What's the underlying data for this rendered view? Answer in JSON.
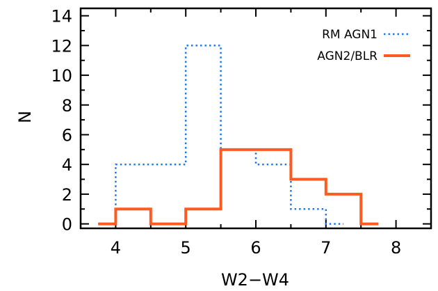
{
  "chart_data": {
    "type": "step-histogram",
    "xlabel": "W2−W4",
    "ylabel": "N",
    "xlim": [
      3.5,
      8.5
    ],
    "ylim": [
      -0.3,
      14.5
    ],
    "xticks": [
      4,
      5,
      6,
      7,
      8
    ],
    "yticks": [
      0,
      2,
      4,
      6,
      8,
      10,
      12,
      14
    ],
    "legend_position": "top-right",
    "series": [
      {
        "name": "RM AGN1",
        "style": "dotted",
        "color": "#1f78e6",
        "bin_edges": [
          3.75,
          4.0,
          4.5,
          5.0,
          5.5,
          6.0,
          6.5,
          7.0,
          7.25
        ],
        "counts": [
          0,
          4,
          4,
          12,
          5,
          4,
          1,
          0
        ]
      },
      {
        "name": "AGN2/BLR",
        "style": "solid",
        "color": "#ff5a1f",
        "bin_edges": [
          3.75,
          4.0,
          4.5,
          5.0,
          5.5,
          6.0,
          6.5,
          7.0,
          7.5,
          7.75
        ],
        "counts": [
          0,
          1,
          0,
          1,
          5,
          5,
          3,
          2,
          0
        ]
      }
    ]
  }
}
